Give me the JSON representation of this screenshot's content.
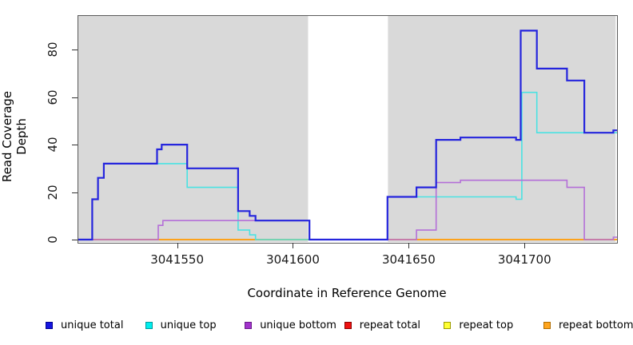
{
  "chart_data": {
    "type": "line",
    "subtype": "step-coverage",
    "title": "",
    "xlabel": "Coordinate in Reference Genome",
    "ylabel": "Read Coverage Depth",
    "xlim": [
      3041507,
      3041739.6
    ],
    "ylim": [
      0,
      93
    ],
    "x_ticks": [
      3041550,
      3041600,
      3041650,
      3041700
    ],
    "y_ticks": [
      0,
      20,
      40,
      60,
      80
    ],
    "grid": false,
    "panel_shade_color": "#d9d9d9",
    "shaded_regions": [
      {
        "from": 3041507,
        "to": 3041606.2
      },
      {
        "from": 3041640.7,
        "to": 3041739
      }
    ],
    "legend_position": "bottom",
    "series": [
      {
        "name": "repeat total",
        "color": "#e02828",
        "width": 1.4,
        "points": [
          [
            3041507,
            0
          ],
          [
            3041739.6,
            0
          ]
        ]
      },
      {
        "name": "repeat top",
        "color": "#f5f520",
        "width": 1.4,
        "points": [
          [
            3041507,
            0
          ],
          [
            3041739.6,
            0
          ]
        ]
      },
      {
        "name": "repeat bottom",
        "color": "#ff9e14",
        "width": 1.8,
        "points": [
          [
            3041507,
            0
          ],
          [
            3041739.6,
            0
          ]
        ]
      },
      {
        "name": "unique top",
        "color": "#4ae2e2",
        "width": 1.6,
        "points": [
          [
            3041507,
            0
          ],
          [
            3041513,
            17
          ],
          [
            3041515.5,
            26
          ],
          [
            3041518,
            32
          ],
          [
            3041554,
            22
          ],
          [
            3041576,
            4
          ],
          [
            3041581,
            2
          ],
          [
            3041583.5,
            0
          ],
          [
            3041640.5,
            18
          ],
          [
            3041696,
            17
          ],
          [
            3041698.5,
            62
          ],
          [
            3041705,
            45
          ],
          [
            3041739.6,
            45
          ]
        ]
      },
      {
        "name": "unique bottom",
        "color": "#b46fd8",
        "width": 1.6,
        "points": [
          [
            3041507,
            0
          ],
          [
            3041541.5,
            6
          ],
          [
            3041543.5,
            8
          ],
          [
            3041606.8,
            0
          ],
          [
            3041653,
            4
          ],
          [
            3041661.5,
            24
          ],
          [
            3041672,
            25
          ],
          [
            3041718,
            22
          ],
          [
            3041725.5,
            0
          ],
          [
            3041738,
            1
          ],
          [
            3041739.6,
            1
          ]
        ]
      },
      {
        "name": "unique total",
        "color": "#2525dd",
        "width": 2.2,
        "points": [
          [
            3041507,
            0
          ],
          [
            3041513,
            17
          ],
          [
            3041515.5,
            26
          ],
          [
            3041518,
            32
          ],
          [
            3041541,
            38
          ],
          [
            3041543,
            40
          ],
          [
            3041554,
            30
          ],
          [
            3041576,
            12
          ],
          [
            3041581,
            10
          ],
          [
            3041583.5,
            8
          ],
          [
            3041606.8,
            0
          ],
          [
            3041640.5,
            18
          ],
          [
            3041653,
            22
          ],
          [
            3041661.5,
            42
          ],
          [
            3041672,
            43
          ],
          [
            3041696,
            42
          ],
          [
            3041698,
            88
          ],
          [
            3041705,
            72
          ],
          [
            3041718,
            67
          ],
          [
            3041725.5,
            45
          ],
          [
            3041738,
            46
          ],
          [
            3041739.6,
            46
          ]
        ]
      }
    ],
    "legend": [
      {
        "label": "unique total",
        "color": "#1515e0",
        "border": "#000090"
      },
      {
        "label": "unique top",
        "color": "#00eeee",
        "border": "#00999b"
      },
      {
        "label": "unique bottom",
        "color": "#a233cc",
        "border": "#6a1b8a"
      },
      {
        "label": "repeat total",
        "color": "#ee1111",
        "border": "#8b0000"
      },
      {
        "label": "repeat top",
        "color": "#ffff33",
        "border": "#9a9a00"
      },
      {
        "label": "repeat bottom",
        "color": "#ffa51e",
        "border": "#b06d00"
      }
    ]
  }
}
